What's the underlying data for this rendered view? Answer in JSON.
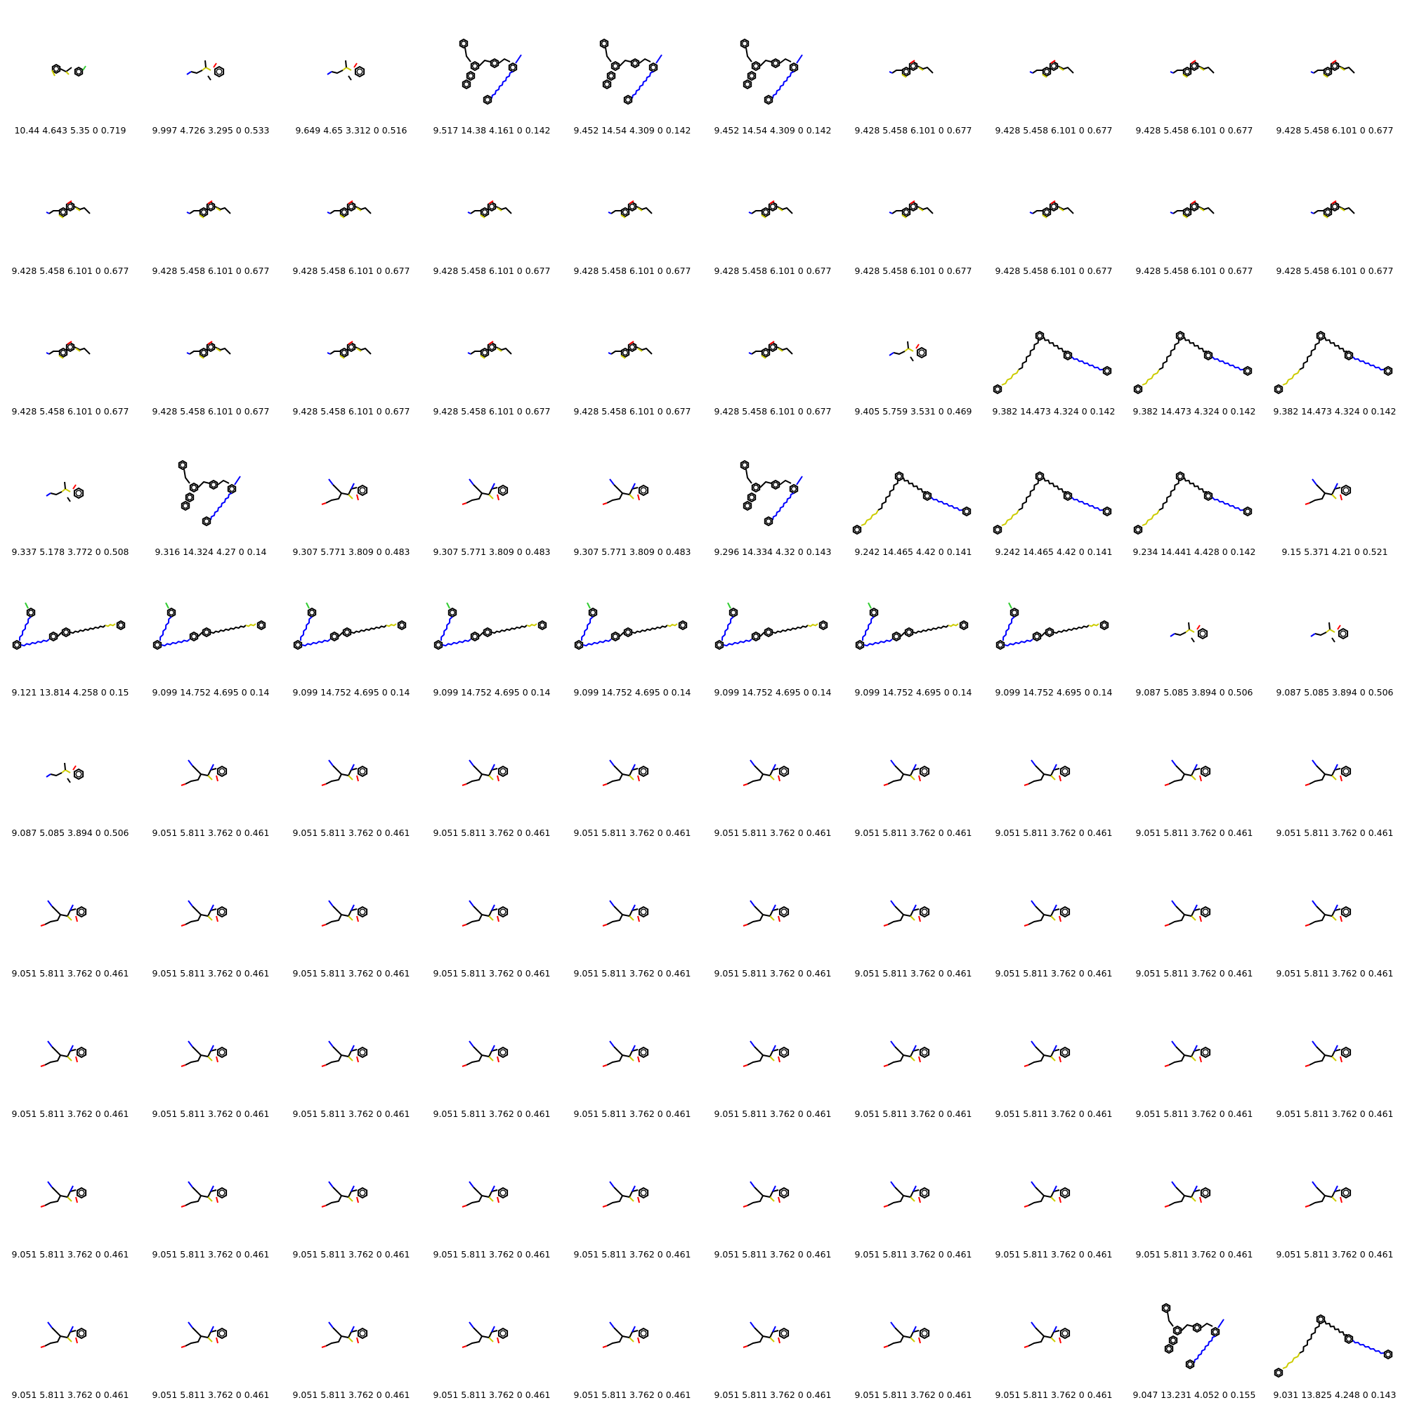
{
  "colors": {
    "bond": "#000000",
    "nitrogen": "#0000ff",
    "oxygen": "#ff0000",
    "sulfur": "#cccc00",
    "fluorine": "#33cc33"
  },
  "cells": [
    {
      "caption": "10.44 4.643 5.35 0 0.719",
      "shape": "A"
    },
    {
      "caption": "9.997 4.726 3.295 0 0.533",
      "shape": "B"
    },
    {
      "caption": "9.649 4.65 3.312 0 0.516",
      "shape": "B"
    },
    {
      "caption": "9.517 14.38 4.161 0 0.142",
      "shape": "D"
    },
    {
      "caption": "9.452 14.54 4.309 0 0.142",
      "shape": "D"
    },
    {
      "caption": "9.452 14.54 4.309 0 0.142",
      "shape": "D"
    },
    {
      "caption": "9.428 5.458 6.101 0 0.677",
      "shape": "C"
    },
    {
      "caption": "9.428 5.458 6.101 0 0.677",
      "shape": "C"
    },
    {
      "caption": "9.428 5.458 6.101 0 0.677",
      "shape": "C"
    },
    {
      "caption": "9.428 5.458 6.101 0 0.677",
      "shape": "C"
    },
    {
      "caption": "9.428 5.458 6.101 0 0.677",
      "shape": "C"
    },
    {
      "caption": "9.428 5.458 6.101 0 0.677",
      "shape": "C"
    },
    {
      "caption": "9.428 5.458 6.101 0 0.677",
      "shape": "C"
    },
    {
      "caption": "9.428 5.458 6.101 0 0.677",
      "shape": "C"
    },
    {
      "caption": "9.428 5.458 6.101 0 0.677",
      "shape": "C"
    },
    {
      "caption": "9.428 5.458 6.101 0 0.677",
      "shape": "C"
    },
    {
      "caption": "9.428 5.458 6.101 0 0.677",
      "shape": "C"
    },
    {
      "caption": "9.428 5.458 6.101 0 0.677",
      "shape": "C"
    },
    {
      "caption": "9.428 5.458 6.101 0 0.677",
      "shape": "C"
    },
    {
      "caption": "9.428 5.458 6.101 0 0.677",
      "shape": "C"
    },
    {
      "caption": "9.428 5.458 6.101 0 0.677",
      "shape": "C"
    },
    {
      "caption": "9.428 5.458 6.101 0 0.677",
      "shape": "C"
    },
    {
      "caption": "9.428 5.458 6.101 0 0.677",
      "shape": "C"
    },
    {
      "caption": "9.428 5.458 6.101 0 0.677",
      "shape": "C"
    },
    {
      "caption": "9.428 5.458 6.101 0 0.677",
      "shape": "C"
    },
    {
      "caption": "9.428 5.458 6.101 0 0.677",
      "shape": "C"
    },
    {
      "caption": "9.405 5.759 3.531 0 0.469",
      "shape": "B"
    },
    {
      "caption": "9.382 14.473 4.324 0 0.142",
      "shape": "E"
    },
    {
      "caption": "9.382 14.473 4.324 0 0.142",
      "shape": "E"
    },
    {
      "caption": "9.382 14.473 4.324 0 0.142",
      "shape": "E"
    },
    {
      "caption": "9.337 5.178 3.772 0 0.508",
      "shape": "B"
    },
    {
      "caption": "9.316 14.324 4.27 0 0.14",
      "shape": "D"
    },
    {
      "caption": "9.307 5.771 3.809 0 0.483",
      "shape": "G"
    },
    {
      "caption": "9.307 5.771 3.809 0 0.483",
      "shape": "G"
    },
    {
      "caption": "9.307 5.771 3.809 0 0.483",
      "shape": "G"
    },
    {
      "caption": "9.296 14.334 4.32 0 0.143",
      "shape": "D"
    },
    {
      "caption": "9.242 14.465 4.42 0 0.141",
      "shape": "E"
    },
    {
      "caption": "9.242 14.465 4.42 0 0.141",
      "shape": "E"
    },
    {
      "caption": "9.234 14.441 4.428 0 0.142",
      "shape": "E"
    },
    {
      "caption": "9.15 5.371 4.21 0 0.521",
      "shape": "G"
    },
    {
      "caption": "9.121 13.814 4.258 0 0.15",
      "shape": "F"
    },
    {
      "caption": "9.099 14.752 4.695 0 0.14",
      "shape": "F"
    },
    {
      "caption": "9.099 14.752 4.695 0 0.14",
      "shape": "F"
    },
    {
      "caption": "9.099 14.752 4.695 0 0.14",
      "shape": "F"
    },
    {
      "caption": "9.099 14.752 4.695 0 0.14",
      "shape": "F"
    },
    {
      "caption": "9.099 14.752 4.695 0 0.14",
      "shape": "F"
    },
    {
      "caption": "9.099 14.752 4.695 0 0.14",
      "shape": "F"
    },
    {
      "caption": "9.099 14.752 4.695 0 0.14",
      "shape": "F"
    },
    {
      "caption": "9.087 5.085 3.894 0 0.506",
      "shape": "B"
    },
    {
      "caption": "9.087 5.085 3.894 0 0.506",
      "shape": "B"
    },
    {
      "caption": "9.087 5.085 3.894 0 0.506",
      "shape": "B"
    },
    {
      "caption": "9.051 5.811 3.762 0 0.461",
      "shape": "G"
    },
    {
      "caption": "9.051 5.811 3.762 0 0.461",
      "shape": "G"
    },
    {
      "caption": "9.051 5.811 3.762 0 0.461",
      "shape": "G"
    },
    {
      "caption": "9.051 5.811 3.762 0 0.461",
      "shape": "G"
    },
    {
      "caption": "9.051 5.811 3.762 0 0.461",
      "shape": "G"
    },
    {
      "caption": "9.051 5.811 3.762 0 0.461",
      "shape": "G"
    },
    {
      "caption": "9.051 5.811 3.762 0 0.461",
      "shape": "G"
    },
    {
      "caption": "9.051 5.811 3.762 0 0.461",
      "shape": "G"
    },
    {
      "caption": "9.051 5.811 3.762 0 0.461",
      "shape": "G"
    },
    {
      "caption": "9.051 5.811 3.762 0 0.461",
      "shape": "G"
    },
    {
      "caption": "9.051 5.811 3.762 0 0.461",
      "shape": "G"
    },
    {
      "caption": "9.051 5.811 3.762 0 0.461",
      "shape": "G"
    },
    {
      "caption": "9.051 5.811 3.762 0 0.461",
      "shape": "G"
    },
    {
      "caption": "9.051 5.811 3.762 0 0.461",
      "shape": "G"
    },
    {
      "caption": "9.051 5.811 3.762 0 0.461",
      "shape": "G"
    },
    {
      "caption": "9.051 5.811 3.762 0 0.461",
      "shape": "G"
    },
    {
      "caption": "9.051 5.811 3.762 0 0.461",
      "shape": "G"
    },
    {
      "caption": "9.051 5.811 3.762 0 0.461",
      "shape": "G"
    },
    {
      "caption": "9.051 5.811 3.762 0 0.461",
      "shape": "G"
    },
    {
      "caption": "9.051 5.811 3.762 0 0.461",
      "shape": "G"
    },
    {
      "caption": "9.051 5.811 3.762 0 0.461",
      "shape": "G"
    },
    {
      "caption": "9.051 5.811 3.762 0 0.461",
      "shape": "G"
    },
    {
      "caption": "9.051 5.811 3.762 0 0.461",
      "shape": "G"
    },
    {
      "caption": "9.051 5.811 3.762 0 0.461",
      "shape": "G"
    },
    {
      "caption": "9.051 5.811 3.762 0 0.461",
      "shape": "G"
    },
    {
      "caption": "9.051 5.811 3.762 0 0.461",
      "shape": "G"
    },
    {
      "caption": "9.051 5.811 3.762 0 0.461",
      "shape": "G"
    },
    {
      "caption": "9.051 5.811 3.762 0 0.461",
      "shape": "G"
    },
    {
      "caption": "9.051 5.811 3.762 0 0.461",
      "shape": "G"
    },
    {
      "caption": "9.051 5.811 3.762 0 0.461",
      "shape": "G"
    },
    {
      "caption": "9.051 5.811 3.762 0 0.461",
      "shape": "G"
    },
    {
      "caption": "9.051 5.811 3.762 0 0.461",
      "shape": "G"
    },
    {
      "caption": "9.051 5.811 3.762 0 0.461",
      "shape": "G"
    },
    {
      "caption": "9.051 5.811 3.762 0 0.461",
      "shape": "G"
    },
    {
      "caption": "9.051 5.811 3.762 0 0.461",
      "shape": "G"
    },
    {
      "caption": "9.051 5.811 3.762 0 0.461",
      "shape": "G"
    },
    {
      "caption": "9.051 5.811 3.762 0 0.461",
      "shape": "G"
    },
    {
      "caption": "9.051 5.811 3.762 0 0.461",
      "shape": "G"
    },
    {
      "caption": "9.051 5.811 3.762 0 0.461",
      "shape": "G"
    },
    {
      "caption": "9.051 5.811 3.762 0 0.461",
      "shape": "G"
    },
    {
      "caption": "9.051 5.811 3.762 0 0.461",
      "shape": "G"
    },
    {
      "caption": "9.051 5.811 3.762 0 0.461",
      "shape": "G"
    },
    {
      "caption": "9.051 5.811 3.762 0 0.461",
      "shape": "G"
    },
    {
      "caption": "9.051 5.811 3.762 0 0.461",
      "shape": "G"
    },
    {
      "caption": "9.051 5.811 3.762 0 0.461",
      "shape": "G"
    },
    {
      "caption": "9.051 5.811 3.762 0 0.461",
      "shape": "G"
    },
    {
      "caption": "9.051 5.811 3.762 0 0.461",
      "shape": "G"
    },
    {
      "caption": "9.047 13.231 4.052 0 0.155",
      "shape": "D"
    },
    {
      "caption": "9.031 13.825 4.248 0 0.143",
      "shape": "E"
    }
  ]
}
